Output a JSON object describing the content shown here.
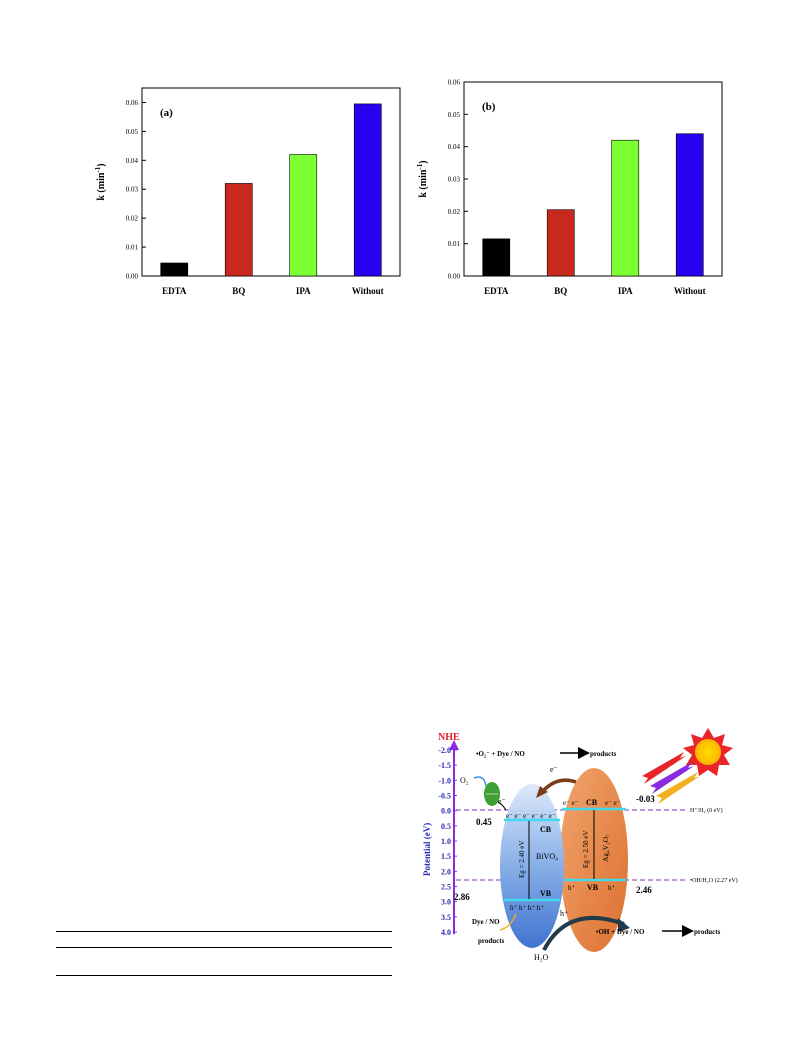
{
  "chart_data": [
    {
      "type": "bar",
      "panel_label": "(a)",
      "categories": [
        "EDTA",
        "BQ",
        "IPA",
        "Without"
      ],
      "values": [
        0.0045,
        0.032,
        0.042,
        0.0595
      ],
      "colors": [
        "#000000",
        "#c8281e",
        "#7cff33",
        "#2a00f0"
      ],
      "ylabel": "k (min",
      "ylabel_sup": "-1",
      "ylabel_close": ")",
      "ylim": [
        0,
        0.065
      ],
      "yticks": [
        "0.00",
        "0.01",
        "0.02",
        "0.03",
        "0.04",
        "0.05",
        "0.06"
      ]
    },
    {
      "type": "bar",
      "panel_label": "(b)",
      "categories": [
        "EDTA",
        "BQ",
        "IPA",
        "Without"
      ],
      "values": [
        0.0115,
        0.0205,
        0.042,
        0.044
      ],
      "colors": [
        "#000000",
        "#c8281e",
        "#7cff33",
        "#2a00f0"
      ],
      "ylabel": "k (min",
      "ylabel_sup": "-1",
      "ylabel_close": ")",
      "ylim": [
        0,
        0.06
      ],
      "yticks": [
        "0.00",
        "0.01",
        "0.02",
        "0.03",
        "0.04",
        "0.05",
        "0.06"
      ]
    }
  ],
  "scheme": {
    "nhe": "NHE",
    "axis_label": "Potential (eV)",
    "ticks": [
      "-2.0",
      "-1.5",
      "-1.0",
      "-0.5",
      "0.0",
      "0.5",
      "1.0",
      "1.5",
      "2.0",
      "2.5",
      "3.0",
      "3.5",
      "4.0"
    ],
    "top_reaction": "•O₂⁻ +  Dye / NO",
    "bottom_reaction": "•OH + Dye / NO",
    "products": "products",
    "o2": "O₂",
    "e_minus": "e⁻",
    "h_plus": "h⁺",
    "water": "H₂O",
    "dye_no": "Dye / NO",
    "bivo4_cb_value": "0.45",
    "bivo4_vb_value": "2.86",
    "ag_cb_value": "-0.03",
    "ag_vb_value": "2.46",
    "bivo4_name": "BiVO₄",
    "ag_name": "Ag₄V₂O₇",
    "bivo4_gap": "Eg = 2.40 eV",
    "ag_gap": "Eg = 2.50 eV",
    "cb": "CB",
    "vb": "VB",
    "e_row_bivo4": "e⁻ e⁻ e⁻ e⁻ e⁻ e⁻",
    "e_row_ag_left": "e⁻ e⁻",
    "e_row_ag_right": "e⁻ e⁻",
    "h_row_bivo4": "h⁺ h⁺ h⁺ h⁺",
    "h_row_ag_left": "h⁺",
    "h_row_ag_right": "h⁺",
    "h2_line": "H⁺/H₂ (0 eV)",
    "oh_line": "•OH/H₂O (2.27 eV)",
    "colors": {
      "nhe": "#e8202a",
      "axis": "#2a2ab8",
      "arrow": "#8a2be2",
      "dashed": "#9b59d0",
      "cyan": "#41d9ee"
    }
  }
}
